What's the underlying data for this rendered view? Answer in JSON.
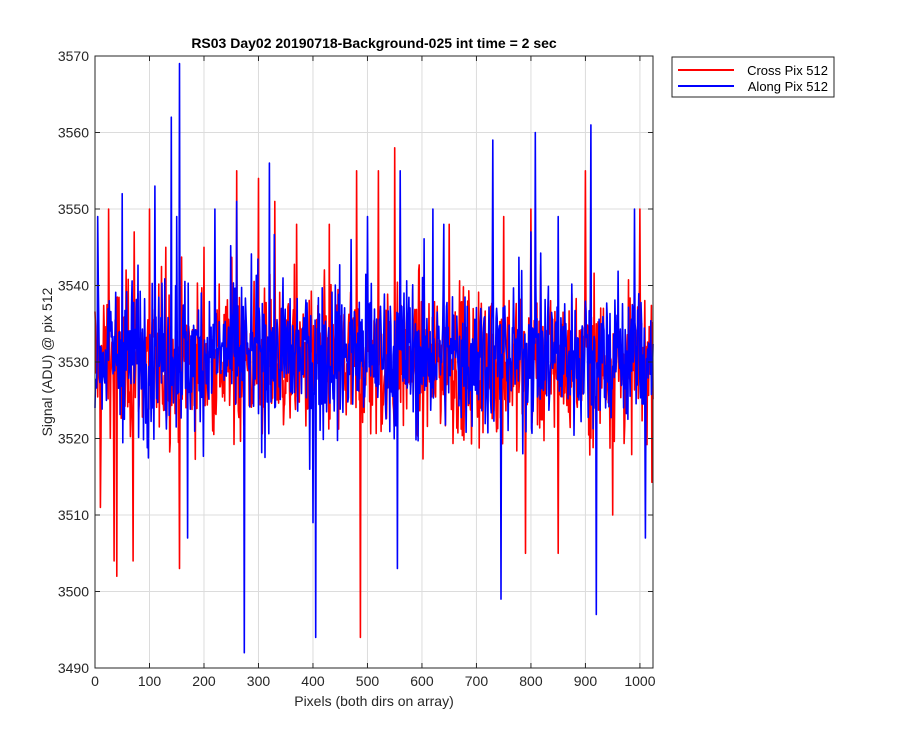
{
  "chart_data": {
    "type": "line",
    "title": "RS03 Day02 20190718-Background-025 int time = 2 sec",
    "xlabel": "Pixels (both dirs on array)",
    "ylabel": "Signal (ADU) @ pix 512",
    "xlim": [
      0,
      1024
    ],
    "ylim": [
      3490,
      3570
    ],
    "xticks": [
      0,
      100,
      200,
      300,
      400,
      500,
      600,
      700,
      800,
      900,
      1000
    ],
    "yticks": [
      3490,
      3500,
      3510,
      3520,
      3530,
      3540,
      3550,
      3560,
      3570
    ],
    "grid": true,
    "legend_position": "outside-top-right",
    "series": [
      {
        "name": "Cross Pix 512",
        "color": "#ff0000",
        "mean": 3530,
        "x": [
          10,
          25,
          35,
          40,
          70,
          72,
          100,
          130,
          155,
          200,
          260,
          300,
          330,
          370,
          430,
          480,
          487,
          520,
          550,
          650,
          750,
          790,
          800,
          850,
          900,
          950,
          1000
        ],
        "y": [
          3511,
          3550,
          3504,
          3502,
          3504,
          3547,
          3550,
          3545,
          3503,
          3545,
          3555,
          3554,
          3551,
          3548,
          3548,
          3555,
          3494,
          3555,
          3558,
          3548,
          3549,
          3505,
          3550,
          3505,
          3555,
          3510,
          3550
        ]
      },
      {
        "name": "Along Pix 512",
        "color": "#0000ff",
        "mean": 3531,
        "x": [
          5,
          50,
          110,
          140,
          150,
          155,
          170,
          220,
          260,
          274,
          320,
          400,
          405,
          470,
          500,
          555,
          560,
          620,
          640,
          730,
          745,
          800,
          808,
          850,
          910,
          920,
          990,
          1010
        ],
        "y": [
          3549,
          3552,
          3553,
          3562,
          3549,
          3569,
          3507,
          3550,
          3551,
          3492,
          3556,
          3509,
          3494,
          3546,
          3549,
          3503,
          3555,
          3550,
          3548,
          3559,
          3499,
          3547,
          3560,
          3549,
          3561,
          3497,
          3550,
          3507
        ]
      }
    ]
  }
}
